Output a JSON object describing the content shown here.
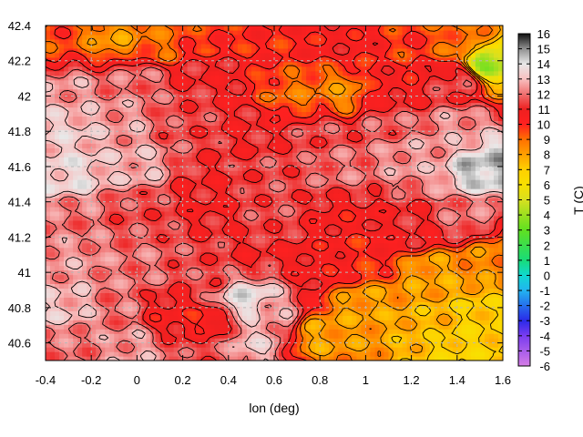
{
  "chart_data": {
    "type": "heatmap",
    "title": "",
    "xlabel": "lon (deg)",
    "ylabel": "",
    "xlim": [
      -0.4,
      1.6
    ],
    "ylim": [
      40.5,
      42.4
    ],
    "x_ticks": [
      "-0.4",
      "-0.2",
      "0",
      "0.2",
      "0.4",
      "0.6",
      "0.8",
      "1",
      "1.2",
      "1.4",
      "1.6"
    ],
    "y_ticks": [
      "40.6",
      "40.8",
      "41",
      "41.2",
      "41.4",
      "41.6",
      "41.8",
      "42",
      "42.2",
      "42.4"
    ],
    "colorbar": {
      "label": "T (C)",
      "min": -6,
      "max": 16,
      "ticks": [
        "-6",
        "-5",
        "-4",
        "-3",
        "-2",
        "-1",
        "0",
        "1",
        "2",
        "3",
        "4",
        "5",
        "6",
        "7",
        "8",
        "9",
        "10",
        "11",
        "12",
        "13",
        "14",
        "15",
        "16"
      ],
      "palette": [
        {
          "v": -6,
          "color": "#d67de6"
        },
        {
          "v": -4,
          "color": "#7a3cf0"
        },
        {
          "v": -3,
          "color": "#2a2ae8"
        },
        {
          "v": -1,
          "color": "#22b4f0"
        },
        {
          "v": 0,
          "color": "#10d8d0"
        },
        {
          "v": 1,
          "color": "#18dc78"
        },
        {
          "v": 3,
          "color": "#60e020"
        },
        {
          "v": 5,
          "color": "#d8e020"
        },
        {
          "v": 6,
          "color": "#f8e000"
        },
        {
          "v": 7,
          "color": "#ffd000"
        },
        {
          "v": 8,
          "color": "#ffa000"
        },
        {
          "v": 9,
          "color": "#ff7000"
        },
        {
          "v": 10,
          "color": "#ff2020"
        },
        {
          "v": 11,
          "color": "#ee2020"
        },
        {
          "v": 12,
          "color": "#f07070"
        },
        {
          "v": 13,
          "color": "#f8c0c0"
        },
        {
          "v": 14,
          "color": "#e8e8e8"
        },
        {
          "v": 15,
          "color": "#909090"
        },
        {
          "v": 16,
          "color": "#101010"
        }
      ]
    },
    "grid": true,
    "contours": true,
    "temperature_samples": [
      {
        "x": -0.35,
        "y": 42.3,
        "v": 9.5
      },
      {
        "x": -0.1,
        "y": 42.33,
        "v": 8.2
      },
      {
        "x": 0.1,
        "y": 42.3,
        "v": 9.0
      },
      {
        "x": 0.3,
        "y": 42.32,
        "v": 9.8
      },
      {
        "x": 0.6,
        "y": 42.3,
        "v": 10.0
      },
      {
        "x": 0.9,
        "y": 42.3,
        "v": 10.5
      },
      {
        "x": 1.2,
        "y": 42.28,
        "v": 9.8
      },
      {
        "x": 1.45,
        "y": 42.3,
        "v": 9.0
      },
      {
        "x": 1.52,
        "y": 42.2,
        "v": 4.0
      },
      {
        "x": -0.3,
        "y": 42.05,
        "v": 12.5
      },
      {
        "x": 0.0,
        "y": 42.1,
        "v": 12.0
      },
      {
        "x": 0.3,
        "y": 42.15,
        "v": 11.0
      },
      {
        "x": 0.7,
        "y": 42.0,
        "v": 9.0
      },
      {
        "x": 0.9,
        "y": 42.02,
        "v": 8.5
      },
      {
        "x": 1.1,
        "y": 42.05,
        "v": 10.5
      },
      {
        "x": 1.4,
        "y": 42.1,
        "v": 11.5
      },
      {
        "x": -0.3,
        "y": 41.8,
        "v": 13.2
      },
      {
        "x": -0.05,
        "y": 41.85,
        "v": 12.5
      },
      {
        "x": 0.2,
        "y": 41.85,
        "v": 11.5
      },
      {
        "x": 0.5,
        "y": 41.8,
        "v": 11.0
      },
      {
        "x": 0.8,
        "y": 41.8,
        "v": 11.5
      },
      {
        "x": 1.1,
        "y": 41.85,
        "v": 11.8
      },
      {
        "x": 1.4,
        "y": 41.8,
        "v": 12.5
      },
      {
        "x": -0.3,
        "y": 41.55,
        "v": 13.5
      },
      {
        "x": 0.0,
        "y": 41.6,
        "v": 12.8
      },
      {
        "x": 0.3,
        "y": 41.5,
        "v": 11.0
      },
      {
        "x": 0.6,
        "y": 41.55,
        "v": 11.5
      },
      {
        "x": 0.9,
        "y": 41.6,
        "v": 12.0
      },
      {
        "x": 1.2,
        "y": 41.65,
        "v": 12.5
      },
      {
        "x": 1.52,
        "y": 41.6,
        "v": 14.5
      },
      {
        "x": -0.3,
        "y": 41.3,
        "v": 12.0
      },
      {
        "x": 0.0,
        "y": 41.35,
        "v": 11.5
      },
      {
        "x": 0.3,
        "y": 41.4,
        "v": 10.8
      },
      {
        "x": 0.6,
        "y": 41.35,
        "v": 11.5
      },
      {
        "x": 0.9,
        "y": 41.3,
        "v": 10.5
      },
      {
        "x": 1.2,
        "y": 41.25,
        "v": 11.0
      },
      {
        "x": 1.45,
        "y": 41.3,
        "v": 12.0
      },
      {
        "x": -0.3,
        "y": 41.05,
        "v": 12.5
      },
      {
        "x": 0.0,
        "y": 41.05,
        "v": 12.0
      },
      {
        "x": 0.3,
        "y": 41.0,
        "v": 11.5
      },
      {
        "x": 0.5,
        "y": 41.1,
        "v": 11.0
      },
      {
        "x": 0.8,
        "y": 41.05,
        "v": 10.5
      },
      {
        "x": 1.0,
        "y": 41.1,
        "v": 10.0
      },
      {
        "x": -0.3,
        "y": 40.8,
        "v": 13.0
      },
      {
        "x": -0.1,
        "y": 40.8,
        "v": 12.0
      },
      {
        "x": 0.15,
        "y": 40.75,
        "v": 10.5
      },
      {
        "x": 0.3,
        "y": 40.7,
        "v": 10.0
      },
      {
        "x": 0.48,
        "y": 40.85,
        "v": 13.8
      },
      {
        "x": 0.6,
        "y": 40.75,
        "v": 12.5
      },
      {
        "x": -0.3,
        "y": 40.58,
        "v": 12.0
      },
      {
        "x": 0.0,
        "y": 40.58,
        "v": 12.5
      },
      {
        "x": 0.3,
        "y": 40.6,
        "v": 11.5
      },
      {
        "x": 0.5,
        "y": 40.6,
        "v": 13.0
      },
      {
        "x": 0.8,
        "y": 40.65,
        "v": 8.0
      },
      {
        "x": 1.0,
        "y": 40.8,
        "v": 8.0
      },
      {
        "x": 1.3,
        "y": 40.7,
        "v": 7.5
      },
      {
        "x": 1.5,
        "y": 40.75,
        "v": 7.0
      },
      {
        "x": 1.3,
        "y": 41.0,
        "v": 8.0
      },
      {
        "x": 1.55,
        "y": 41.1,
        "v": 8.5
      },
      {
        "x": 1.4,
        "y": 40.6,
        "v": 6.8
      }
    ]
  }
}
